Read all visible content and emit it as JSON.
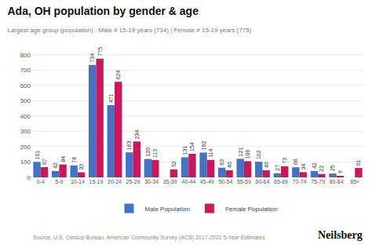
{
  "chart_data": {
    "type": "bar",
    "title": "Ada, OH population by gender & age",
    "subtitle": "Largest age group (population) : Male # 15-19 years (734) | Female # 15-19 years (775)",
    "categories": [
      "0-4",
      "5-9",
      "10-14",
      "15-19",
      "20-24",
      "25-29",
      "30-34",
      "35-39",
      "40-44",
      "45-49",
      "50-54",
      "55-59",
      "60-64",
      "65-69",
      "70-74",
      "75-79",
      "80-84",
      "85+"
    ],
    "series": [
      {
        "name": "Male Population",
        "color": "#4472C4",
        "values": [
          101,
          42,
          78,
          734,
          471,
          163,
          120,
          0,
          131,
          162,
          63,
          121,
          102,
          27,
          66,
          42,
          25,
          0
        ]
      },
      {
        "name": "Female Population",
        "color": "#C9185B",
        "values": [
          67,
          84,
          33,
          775,
          624,
          234,
          113,
          52,
          154,
          114,
          46,
          106,
          46,
          73,
          34,
          22,
          9,
          61
        ]
      }
    ],
    "ylim": [
      0,
      850
    ],
    "yticks": [
      0,
      100,
      200,
      300,
      400,
      500,
      600,
      700,
      800
    ],
    "grid": true,
    "legend": "bottom",
    "data_labels": true,
    "annotations": [
      "Source: U.S. Census Bureau, American Community Survey (ACS) 2017-2021 5-Year Estimates",
      "Neilsberg"
    ]
  }
}
